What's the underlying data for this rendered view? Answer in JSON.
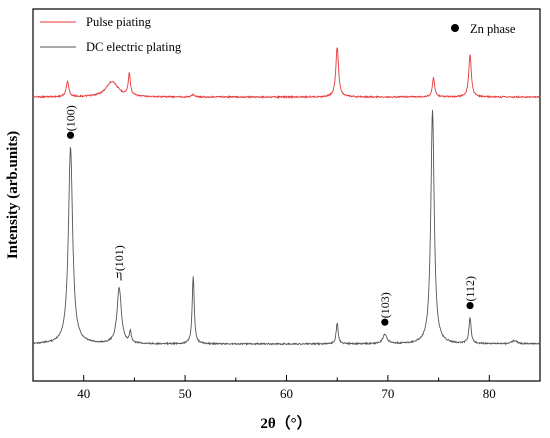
{
  "chart_data": {
    "type": "line",
    "xlabel": "2θ（°）",
    "ylabel": "Intensity (arb.units)",
    "xlim": [
      35,
      85
    ],
    "xticks": [
      40,
      50,
      60,
      70,
      80
    ],
    "legend": {
      "placement": "top-left",
      "entries": [
        {
          "name": "Pulse piating",
          "color": "#e8393a"
        },
        {
          "name": "DC electric plating",
          "color": "#555555"
        }
      ]
    },
    "phase_legend": {
      "marker": "●",
      "label": "Zn phase",
      "placement": "top-right"
    },
    "series": [
      {
        "name": "Pulse piating",
        "color": "#e8393a",
        "baseline": 0,
        "peaks": [
          {
            "x": 38.4,
            "height": 0.31,
            "width": 0.15
          },
          {
            "x": 42.8,
            "height": 0.31,
            "width": 0.7
          },
          {
            "x": 44.5,
            "height": 0.44,
            "width": 0.13
          },
          {
            "x": 50.8,
            "height": 0.05,
            "width": 0.15
          },
          {
            "x": 65.0,
            "height": 1.0,
            "width": 0.16
          },
          {
            "x": 74.5,
            "height": 0.38,
            "width": 0.14
          },
          {
            "x": 78.1,
            "height": 0.85,
            "width": 0.15
          }
        ]
      },
      {
        "name": "DC electric plating",
        "color": "#555555",
        "baseline": 0,
        "peaks": [
          {
            "x": 38.7,
            "height": 0.84,
            "width": 0.25
          },
          {
            "x": 43.5,
            "height": 0.24,
            "width": 0.25
          },
          {
            "x": 44.6,
            "height": 0.05,
            "width": 0.1
          },
          {
            "x": 50.8,
            "height": 0.29,
            "width": 0.12
          },
          {
            "x": 65.0,
            "height": 0.09,
            "width": 0.12
          },
          {
            "x": 69.7,
            "height": 0.04,
            "width": 0.25
          },
          {
            "x": 74.4,
            "height": 1.0,
            "width": 0.2
          },
          {
            "x": 78.1,
            "height": 0.11,
            "width": 0.13
          },
          {
            "x": 82.5,
            "height": 0.015,
            "width": 0.3
          }
        ]
      }
    ],
    "annotations": [
      {
        "x": 38.7,
        "marker": "dot",
        "label": "(100)"
      },
      {
        "x": 43.5,
        "marker": "eta",
        "label": "(101)"
      },
      {
        "x": 69.7,
        "marker": "dot",
        "label": "(103)"
      },
      {
        "x": 78.1,
        "marker": "dot",
        "label": "(112)"
      }
    ],
    "eta_symbol": "η",
    "grid": false
  }
}
